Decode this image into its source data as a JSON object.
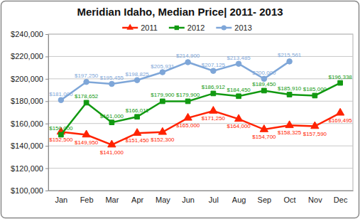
{
  "chart_data": {
    "type": "line",
    "title": "Meridian Idaho, Median Price| 2011- 2013",
    "categories": [
      "Jan",
      "Feb",
      "Mar",
      "Apr",
      "May",
      "Jun",
      "Jul",
      "Aug",
      "Sep",
      "Oct",
      "Nov",
      "Dec"
    ],
    "series": [
      {
        "name": "2011",
        "color": "#ff2200",
        "marker": "triangle",
        "values": [
          152500,
          149950,
          141000,
          151450,
          152300,
          165000,
          171250,
          164000,
          154700,
          158325,
          157590,
          169495
        ],
        "value_labels": [
          "$152,500",
          "$149,950",
          "$141,000",
          "$151,450",
          "$152,300",
          "$165,000",
          "$171,250",
          "$164,000",
          "$154,700",
          "$158,325",
          "$157,590",
          "$169,495"
        ]
      },
      {
        "name": "2012",
        "color": "#119911",
        "marker": "square",
        "values": [
          150000,
          178652,
          161000,
          166011,
          179900,
          179900,
          186912,
          184450,
          189450,
          185910,
          185000,
          196338
        ],
        "value_labels": [
          "$150,000",
          "$178,652",
          "$161,000",
          "$166,011",
          "$179,900",
          "$179,900",
          "$186,912",
          "$184,450",
          "$189,450",
          "$185,910",
          "$185,000",
          "$196,338"
        ]
      },
      {
        "name": "2013",
        "color": "#7ea6d8",
        "marker": "circle",
        "values": [
          181000,
          197250,
          195455,
          198825,
          205931,
          214900,
          207125,
          213485,
          200000,
          215561,
          null,
          null
        ],
        "value_labels": [
          "$181,000",
          "$197,250",
          "$195,455",
          "$198,825",
          "$205,931",
          "$214,900",
          "$207,125",
          "$213,485",
          "$200,000",
          "$215,561",
          null,
          null
        ]
      }
    ],
    "ylim": [
      100000,
      240000
    ],
    "yticks": [
      {
        "value": 100000,
        "label": "$100,000"
      },
      {
        "value": 120000,
        "label": "$120,000"
      },
      {
        "value": 140000,
        "label": "$140,000"
      },
      {
        "value": 160000,
        "label": "$160,000"
      },
      {
        "value": 180000,
        "label": "$180,000"
      },
      {
        "value": 200000,
        "label": "$200,000"
      },
      {
        "value": 220000,
        "label": "$220,000"
      },
      {
        "value": 240000,
        "label": "$240,000"
      }
    ],
    "grid": true,
    "legend": "top",
    "data_labels": true
  }
}
